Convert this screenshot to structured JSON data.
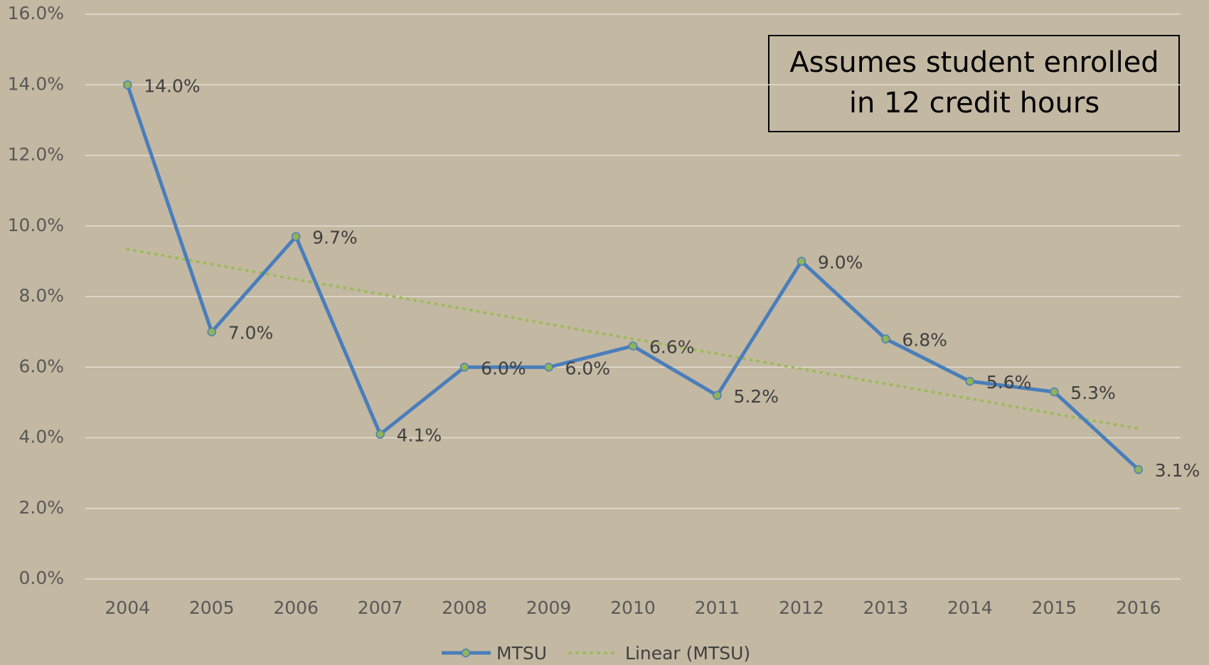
{
  "chart_data": {
    "type": "line",
    "annotation": [
      "Assumes student enrolled",
      "in 12 credit hours"
    ],
    "categories": [
      "2004",
      "2005",
      "2006",
      "2007",
      "2008",
      "2009",
      "2010",
      "2011",
      "2012",
      "2013",
      "2014",
      "2015",
      "2016"
    ],
    "series": [
      {
        "name": "MTSU",
        "color": "#4a7ebb",
        "marker_color": "#8fb35a",
        "values": [
          14.0,
          7.0,
          9.7,
          4.1,
          6.0,
          6.0,
          6.6,
          5.2,
          9.0,
          6.8,
          5.6,
          5.3,
          3.1
        ],
        "value_labels": [
          "14.0%",
          "7.0%",
          "9.7%",
          "4.1%",
          "6.0%",
          "6.0%",
          "6.6%",
          "5.2%",
          "9.0%",
          "6.8%",
          "5.6%",
          "5.3%",
          "3.1%"
        ]
      },
      {
        "name": "Linear (MTSU)",
        "color": "#9bbb59",
        "dotted": true,
        "values": [
          9.34,
          8.92,
          8.49,
          8.07,
          7.65,
          7.22,
          6.8,
          6.38,
          5.95,
          5.53,
          5.11,
          4.68,
          4.26
        ]
      }
    ],
    "ylim": [
      0,
      16
    ],
    "yticks": [
      {
        "value": 0,
        "label": "0.0%"
      },
      {
        "value": 2,
        "label": "2.0%"
      },
      {
        "value": 4,
        "label": "4.0%"
      },
      {
        "value": 6,
        "label": "6.0%"
      },
      {
        "value": 8,
        "label": "8.0%"
      },
      {
        "value": 10,
        "label": "10.0%"
      },
      {
        "value": 12,
        "label": "12.0%"
      },
      {
        "value": 14,
        "label": "14.0%"
      },
      {
        "value": 16,
        "label": "16.0%"
      }
    ],
    "grid": true,
    "legend": "bottom"
  }
}
